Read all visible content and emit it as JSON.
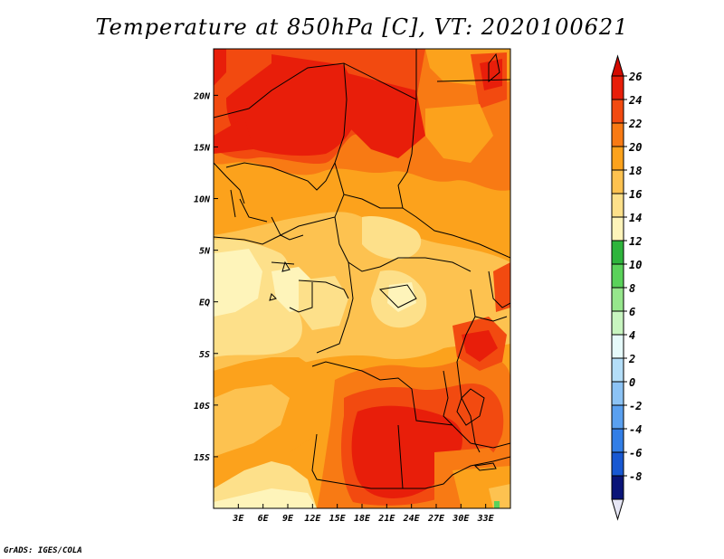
{
  "title": "Temperature at 850hPa [C], VT: 2020100621",
  "footer": "GrADS: IGES/COLA",
  "map": {
    "lon_range": [
      0,
      36
    ],
    "lat_range": [
      -20,
      24.5
    ],
    "y_ticks": [
      {
        "lat": 20,
        "label": "20N"
      },
      {
        "lat": 15,
        "label": "15N"
      },
      {
        "lat": 10,
        "label": "10N"
      },
      {
        "lat": 5,
        "label": "5N"
      },
      {
        "lat": 0,
        "label": "EQ"
      },
      {
        "lat": -5,
        "label": "5S"
      },
      {
        "lat": -10,
        "label": "10S"
      },
      {
        "lat": -15,
        "label": "15S"
      }
    ],
    "x_ticks": [
      {
        "lon": 3,
        "label": "3E"
      },
      {
        "lon": 6,
        "label": "6E"
      },
      {
        "lon": 9,
        "label": "9E"
      },
      {
        "lon": 12,
        "label": "12E"
      },
      {
        "lon": 15,
        "label": "15E"
      },
      {
        "lon": 18,
        "label": "18E"
      },
      {
        "lon": 21,
        "label": "21E"
      },
      {
        "lon": 24,
        "label": "24E"
      },
      {
        "lon": 27,
        "label": "27E"
      },
      {
        "lon": 30,
        "label": "30E"
      },
      {
        "lon": 33,
        "label": "33E"
      }
    ]
  },
  "colorbar": {
    "levels": [
      {
        "label": "26",
        "color": "#e81e0a"
      },
      {
        "label": "24",
        "color": "#f24a10"
      },
      {
        "label": "22",
        "color": "#f87a14"
      },
      {
        "label": "20",
        "color": "#fca21c"
      },
      {
        "label": "18",
        "color": "#fdc250"
      },
      {
        "label": "16",
        "color": "#fde08a"
      },
      {
        "label": "14",
        "color": "#fef4ba"
      },
      {
        "label": "12",
        "color": "#2eb43c"
      },
      {
        "label": "10",
        "color": "#5ad25a"
      },
      {
        "label": "8",
        "color": "#96e68c"
      },
      {
        "label": "6",
        "color": "#c8f5c0"
      },
      {
        "label": "4",
        "color": "#e6fafa"
      },
      {
        "label": "2",
        "color": "#b4def8"
      },
      {
        "label": "0",
        "color": "#8cc3f5"
      },
      {
        "label": "-2",
        "color": "#5aa0f0"
      },
      {
        "label": "-4",
        "color": "#327ee6"
      },
      {
        "label": "-6",
        "color": "#1858d2"
      },
      {
        "label": "-8",
        "color": "#0a30a8"
      }
    ],
    "top_color": "#d40a00",
    "bottom_color": "#e6e6f5",
    "bottom_inner": "#0a1478"
  }
}
